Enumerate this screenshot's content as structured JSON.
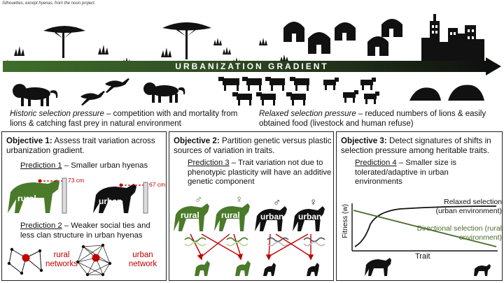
{
  "credit": "Silhouettes, except hyenas, from the noun project.",
  "gradient_label": "URBANIZATION GRADIENT",
  "historic": {
    "title": "Historic selection pressure",
    "text": " – competition with and mortality from lions & catching fast prey in natural environment"
  },
  "relaxed": {
    "title": "Relaxed selection pressure",
    "text": " –  reduced numbers of lions & easily obtained food (livestock and human refuse)"
  },
  "objective1": {
    "heading": "Objective 1:",
    "text": " Assess trait variation across urbanization gradient.",
    "pred1_label": "Prediction 1",
    "pred1_text": " – Smaller urban hyenas",
    "rural_label": "rural",
    "urban_label": "urban",
    "rural_size": "73 cm",
    "urban_size": "67 cm",
    "pred2_label": "Prediction 2",
    "pred2_text": " – Weaker social ties and less clan structure in urban hyenas",
    "rural_networks": "rural networks",
    "urban_network": "urban network"
  },
  "objective2": {
    "heading": "Objective 2:",
    "text": " Partition genetic versus plastic sources of variation in traits.",
    "pred3_label": "Prediction 3",
    "pred3_text": " – Trait variation not due to phenotypic plasticity will have an additive genetic component",
    "hyenas": [
      {
        "label": "rural",
        "sex": "♂"
      },
      {
        "label": "rural",
        "sex": "♀"
      },
      {
        "label": "urban",
        "sex": "♂"
      },
      {
        "label": "urban",
        "sex": "♀"
      }
    ]
  },
  "objective3": {
    "heading": "Objective 3:",
    "text": " Detect signatures of shifts in selection pressure among heritable traits.",
    "pred4_label": "Prediction 4",
    "pred4_text": " – Smaller size is tolerated/adaptive in urban environments",
    "relaxed_label": "Relaxed selection (urban environment)",
    "directional_label": "Directional selection (rural environment)",
    "y_axis": "Fitness (w)",
    "x_axis": "Trait"
  },
  "colors": {
    "rural": "#4a7a2a",
    "urban": "#111111",
    "accent_red": "#c00000",
    "dna_dark": "#555555",
    "dna_light": "#b9d89c"
  }
}
